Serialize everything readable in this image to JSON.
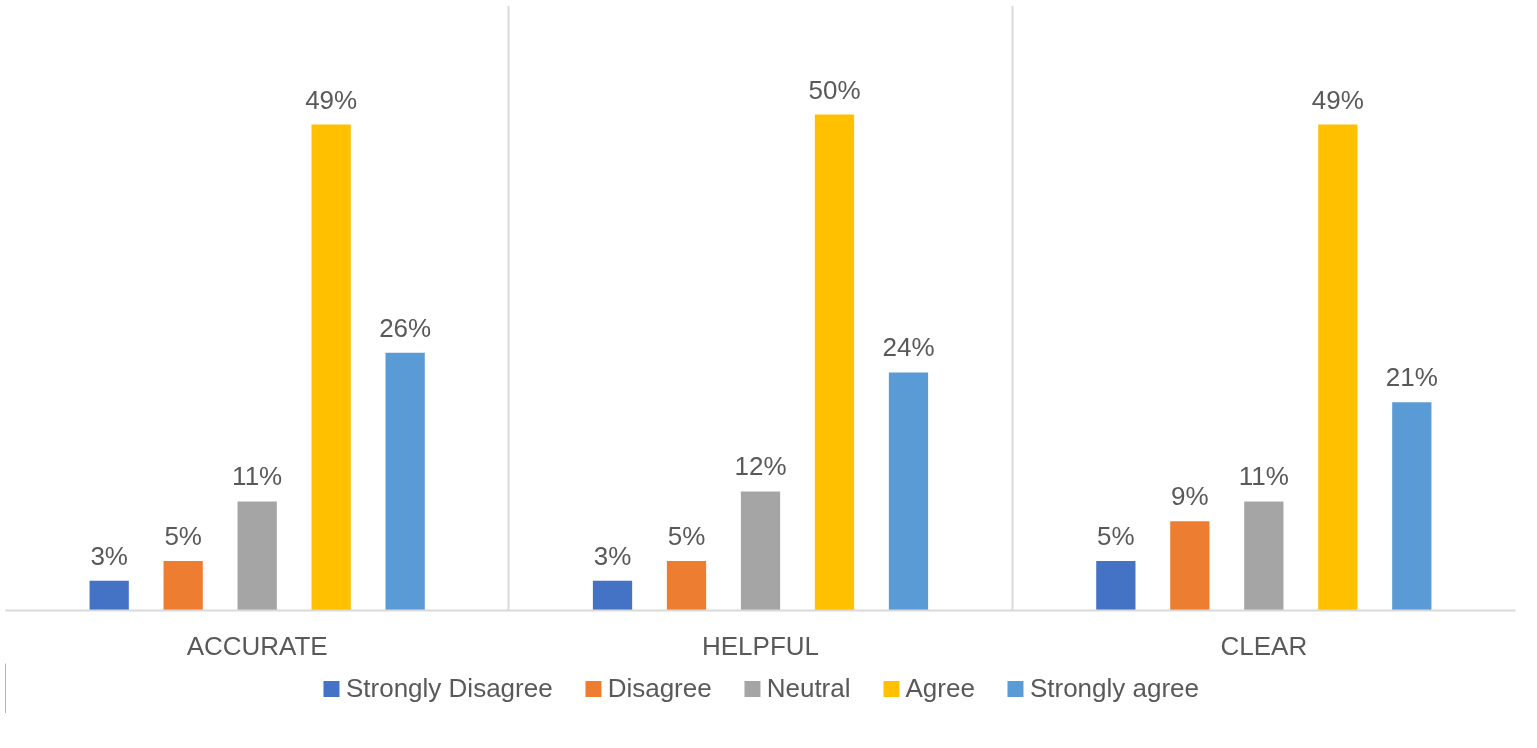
{
  "chart_data": {
    "type": "bar",
    "categories": [
      "ACCURATE",
      "HELPFUL",
      "CLEAR"
    ],
    "series": [
      {
        "name": "Strongly Disagree",
        "color": "#4472c4",
        "values": [
          3,
          3,
          5
        ],
        "value_labels": [
          "3%",
          "3%",
          "5%"
        ]
      },
      {
        "name": "Disagree",
        "color": "#ed7d31",
        "values": [
          5,
          5,
          9
        ],
        "value_labels": [
          "5%",
          "5%",
          "9%"
        ]
      },
      {
        "name": "Neutral",
        "color": "#a5a5a5",
        "values": [
          11,
          12,
          11
        ],
        "value_labels": [
          "11%",
          "12%",
          "11%"
        ]
      },
      {
        "name": "Agree",
        "color": "#ffc000",
        "values": [
          49,
          50,
          49
        ],
        "value_labels": [
          "49%",
          "50%",
          "49%"
        ]
      },
      {
        "name": "Strongly agree",
        "color": "#5b9bd5",
        "values": [
          26,
          24,
          21
        ],
        "value_labels": [
          "26%",
          "24%",
          "21%"
        ]
      }
    ],
    "legend": "bottom"
  }
}
